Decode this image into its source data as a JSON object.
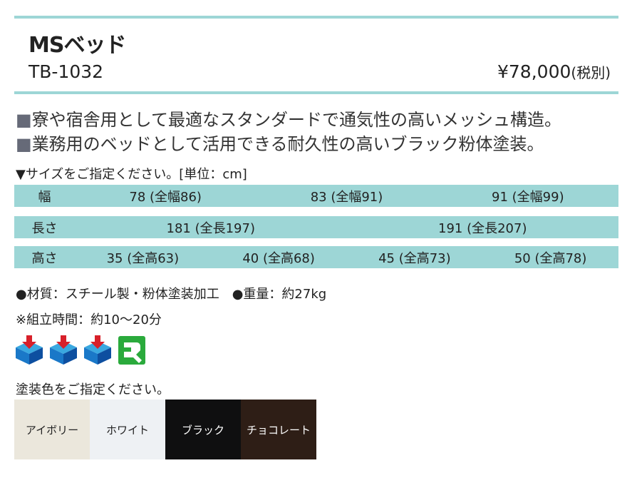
{
  "header": {
    "title": "MSベッド",
    "model": "TB-1032",
    "price": "¥78,000",
    "tax_note": "(税別)"
  },
  "features": [
    {
      "bullet": "■",
      "text": "寮や宿舎用として最適なスタンダードで通気性の高いメッシュ構造。"
    },
    {
      "bullet": "■",
      "text": "業務用のベッドとして活用できる耐久性の高いブラック粉体塗装。"
    }
  ],
  "size_note": "▼サイズをご指定ください。[単位：cm]",
  "size_table": [
    {
      "label": "幅",
      "values": [
        "78 (全幅86)",
        "83 (全幅91)",
        "91 (全幅99)"
      ]
    },
    {
      "label": "長さ",
      "values": [
        "181 (全長197)",
        "191 (全長207)"
      ]
    },
    {
      "label": "高さ",
      "values": [
        "35 (全高63)",
        "40 (全高68)",
        "45 (全高73)",
        "50 (全高78)"
      ]
    }
  ],
  "specs": "●材質：スチール製・粉体塗装加工　●重量：約27kg",
  "assembly": "※組立時間：約10〜20分",
  "icons": [
    "delivery-box-icon",
    "delivery-box-icon",
    "delivery-box-icon",
    "assembly-wrench-icon"
  ],
  "color_prompt": "塗装色をご指定ください。",
  "colors": [
    {
      "name": "アイボリー",
      "bg": "#ebe7dc",
      "fg": "#222222"
    },
    {
      "name": "ホワイト",
      "bg": "#eef1f4",
      "fg": "#222222"
    },
    {
      "name": "ブラック",
      "bg": "#0f0f10",
      "fg": "#ffffff"
    },
    {
      "name": "チョコレート",
      "bg": "#2e1e16",
      "fg": "#ffffff"
    }
  ],
  "accent": "#9dd6d6"
}
